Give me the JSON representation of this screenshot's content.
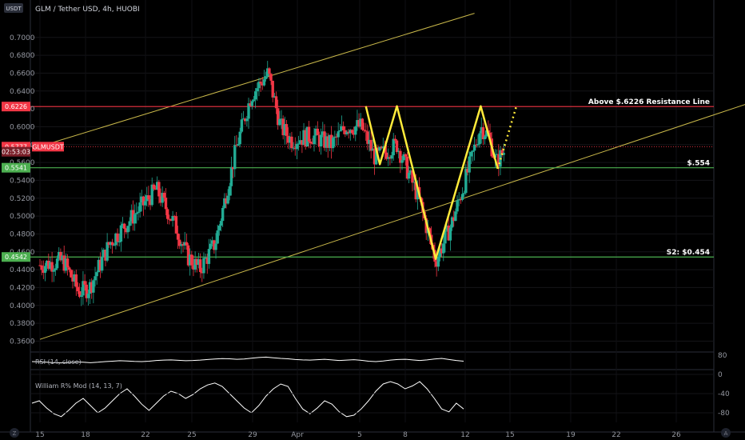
{
  "header": {
    "symbol_badge": "USDT",
    "title": "GLM / Tether USD, 4h, HUOBI"
  },
  "colors": {
    "up": "#22ab94",
    "down": "#f23645",
    "resistance": "#f23645",
    "support": "#4caf50",
    "channel": "#c9b84a",
    "pattern": "#ffeb3b"
  },
  "chart_data": [
    {
      "type": "candlestick",
      "title": "GLM / Tether USD, 4h, HUOBI",
      "ylim": [
        0.355,
        0.715
      ],
      "y_ticks": [
        "0.7000",
        "0.6800",
        "0.6600",
        "0.6400",
        "0.6200",
        "0.6000",
        "0.5800",
        "0.5600",
        "0.5400",
        "0.5200",
        "0.5000",
        "0.4800",
        "0.4600",
        "0.4400",
        "0.4200",
        "0.4000",
        "0.3800",
        "0.3600"
      ],
      "x_ticks": [
        "15",
        "18",
        "22",
        "25",
        "29",
        "Apr",
        "5",
        "8",
        "12",
        "15",
        "19",
        "22",
        "26"
      ],
      "price_tags": [
        {
          "label": "0.6226",
          "value": 0.6226,
          "kind": "resistance"
        },
        {
          "label": "0.5777",
          "value": 0.5777,
          "kind": "last"
        },
        {
          "label": "02:53:03",
          "value": 0.572,
          "kind": "timer"
        },
        {
          "label": "0.5541",
          "value": 0.5541,
          "kind": "support"
        },
        {
          "label": "0.4542",
          "value": 0.4542,
          "kind": "support"
        }
      ],
      "symbol_tag": "GLMUSDT",
      "levels": [
        {
          "value": 0.6226,
          "label": "Above $.6226 Resistance Line",
          "kind": "resistance"
        },
        {
          "value": 0.5541,
          "label": "$.554",
          "kind": "support"
        },
        {
          "value": 0.4542,
          "label": "S2: $0.454",
          "kind": "support"
        }
      ],
      "channel": {
        "upper": [
          {
            "x": 0.0,
            "y": 0.578
          },
          {
            "x": 28.0,
            "y": 0.727
          }
        ],
        "lower": [
          {
            "x": 0.0,
            "y": 0.362
          },
          {
            "x": 47.0,
            "y": 0.634
          }
        ]
      },
      "pattern_path": [
        {
          "x": 21.0,
          "y": 0.623
        },
        {
          "x": 21.9,
          "y": 0.558
        },
        {
          "x": 23.0,
          "y": 0.623
        },
        {
          "x": 25.5,
          "y": 0.452
        },
        {
          "x": 28.4,
          "y": 0.623
        },
        {
          "x": 29.5,
          "y": 0.553
        }
      ],
      "projection": [
        {
          "x": 29.5,
          "y": 0.553
        },
        {
          "x": 30.7,
          "y": 0.623
        }
      ],
      "candles_seed": {
        "start": 0.445,
        "count": 270
      }
    },
    {
      "type": "line",
      "title": "RSI (14, close)",
      "y_ticks": [
        "80"
      ],
      "ylim": [
        20,
        80
      ],
      "values": [
        50,
        49,
        47,
        45,
        44,
        46,
        48,
        47,
        45,
        47,
        50,
        52,
        54,
        53,
        51,
        50,
        52,
        55,
        57,
        58,
        56,
        54,
        55,
        57,
        60,
        62,
        64,
        63,
        61,
        62,
        66,
        69,
        71,
        68,
        65,
        63,
        60,
        58,
        57,
        59,
        61,
        58,
        55,
        57,
        59,
        56,
        52,
        50,
        53,
        57,
        60,
        61,
        58,
        55,
        58,
        62,
        65,
        60,
        55,
        52
      ]
    },
    {
      "type": "line",
      "title": "William R% Mod (14, 13, 7)",
      "y_ticks": [
        "0",
        "-40",
        "-80"
      ],
      "ylim": [
        -100,
        0
      ],
      "values": [
        -60,
        -55,
        -70,
        -82,
        -88,
        -75,
        -60,
        -50,
        -65,
        -80,
        -70,
        -55,
        -40,
        -30,
        -45,
        -62,
        -75,
        -60,
        -45,
        -35,
        -40,
        -50,
        -42,
        -30,
        -22,
        -18,
        -25,
        -40,
        -55,
        -70,
        -80,
        -65,
        -45,
        -30,
        -20,
        -25,
        -50,
        -72,
        -82,
        -70,
        -55,
        -62,
        -78,
        -88,
        -85,
        -72,
        -55,
        -35,
        -20,
        -15,
        -20,
        -30,
        -24,
        -15,
        -30,
        -50,
        -72,
        -78,
        -60,
        -72
      ]
    }
  ]
}
